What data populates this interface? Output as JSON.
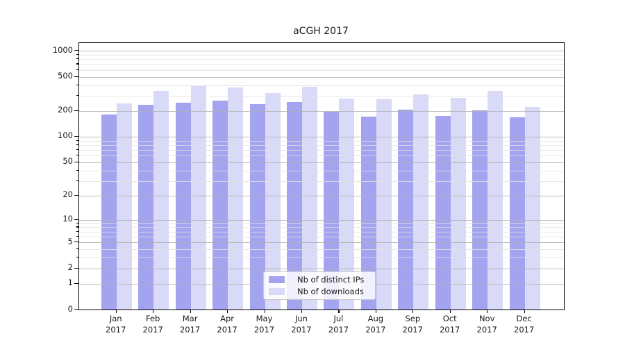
{
  "chart_data": {
    "type": "bar",
    "title": "aCGH 2017",
    "categories": [
      "Jan 2017",
      "Feb 2017",
      "Mar 2017",
      "Apr 2017",
      "May 2017",
      "Jun 2017",
      "Jul 2017",
      "Aug 2017",
      "Sep 2017",
      "Oct 2017",
      "Nov 2017",
      "Dec 2017"
    ],
    "series": [
      {
        "name": "Nb of distinct IPs",
        "color": "#a3a3f0",
        "values": [
          180,
          234,
          250,
          265,
          242,
          252,
          194,
          173,
          208,
          175,
          204,
          170
        ]
      },
      {
        "name": "Nb of downloads",
        "color": "#d9d9f8",
        "values": [
          244,
          341,
          387,
          377,
          324,
          384,
          278,
          275,
          310,
          282,
          341,
          224
        ]
      }
    ],
    "xlabel": "",
    "ylabel": "",
    "yscale": "log10(value+1)",
    "yticks": [
      0,
      1,
      2,
      5,
      10,
      20,
      50,
      100,
      200,
      500,
      1000
    ],
    "yminor_gridlines": [
      3,
      4,
      6,
      7,
      8,
      9,
      30,
      40,
      60,
      70,
      80,
      90,
      300,
      400,
      600,
      700,
      800,
      900
    ],
    "ylim": [
      0,
      1230
    ],
    "grid": "horizontal major and minor, drawn over bars",
    "legend_position": "lower center inside plot"
  }
}
